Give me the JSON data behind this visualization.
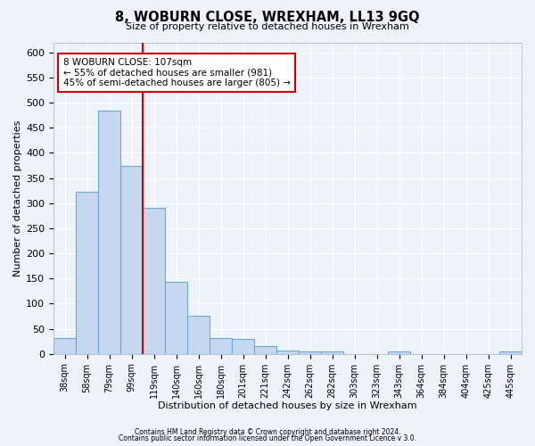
{
  "title": "8, WOBURN CLOSE, WREXHAM, LL13 9GQ",
  "subtitle": "Size of property relative to detached houses in Wrexham",
  "xlabel": "Distribution of detached houses by size in Wrexham",
  "ylabel": "Number of detached properties",
  "bar_labels": [
    "38sqm",
    "58sqm",
    "79sqm",
    "99sqm",
    "119sqm",
    "140sqm",
    "160sqm",
    "180sqm",
    "201sqm",
    "221sqm",
    "242sqm",
    "262sqm",
    "282sqm",
    "303sqm",
    "323sqm",
    "343sqm",
    "364sqm",
    "384sqm",
    "404sqm",
    "425sqm",
    "445sqm"
  ],
  "bar_heights": [
    32,
    323,
    484,
    375,
    290,
    143,
    75,
    31,
    30,
    16,
    7,
    4,
    4,
    0,
    0,
    5,
    0,
    0,
    0,
    0,
    5
  ],
  "bar_color": "#c5d8ef",
  "bar_edge_color": "#6aaad4",
  "vline_color": "#cc0000",
  "annotation_title": "8 WOBURN CLOSE: 107sqm",
  "annotation_line1": "← 55% of detached houses are smaller (981)",
  "annotation_line2": "45% of semi-detached houses are larger (805) →",
  "ylim": [
    0,
    620
  ],
  "yticks": [
    0,
    50,
    100,
    150,
    200,
    250,
    300,
    350,
    400,
    450,
    500,
    550,
    600
  ],
  "footer1": "Contains HM Land Registry data © Crown copyright and database right 2024.",
  "footer2": "Contains public sector information licensed under the Open Government Licence v 3.0.",
  "bg_color": "#eef2f9",
  "plot_bg_color": "#eef2f9",
  "grid_color": "#ffffff"
}
